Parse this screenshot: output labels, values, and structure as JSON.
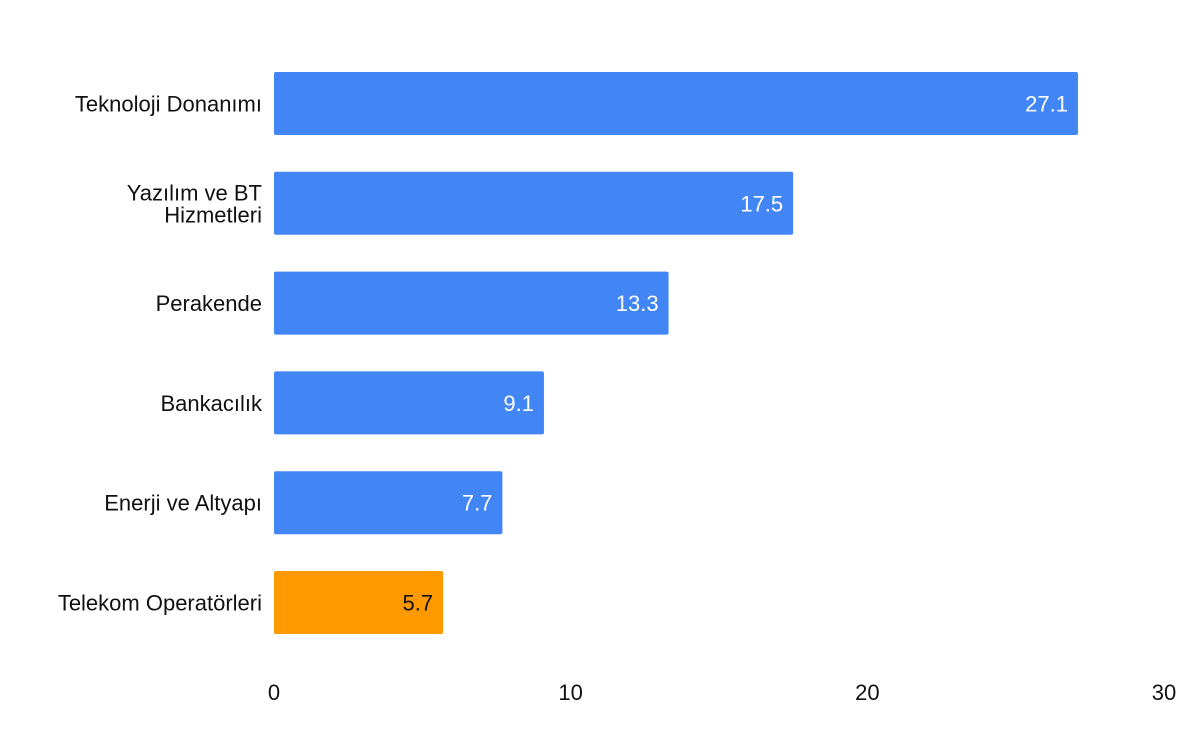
{
  "chart_data": {
    "type": "bar",
    "orientation": "horizontal",
    "categories": [
      [
        "Teknoloji Donanımı"
      ],
      [
        "Yazılım ve BT",
        "Hizmetleri"
      ],
      [
        "Perakende"
      ],
      [
        "Bankacılık"
      ],
      [
        "Enerji ve Altyapı"
      ],
      [
        "Telekom Operatörleri"
      ]
    ],
    "values": [
      27.1,
      17.5,
      13.3,
      9.1,
      7.7,
      5.7
    ],
    "value_labels": [
      "27.1",
      "17.5",
      "13.3",
      "9.1",
      "7.7",
      "5.7"
    ],
    "colors": [
      "#4285F4",
      "#4285F4",
      "#4285F4",
      "#4285F4",
      "#4285F4",
      "#FF9900"
    ],
    "label_colors": [
      "#ffffff",
      "#ffffff",
      "#ffffff",
      "#ffffff",
      "#ffffff",
      "#111111"
    ],
    "xticks": [
      0,
      10,
      20,
      30
    ],
    "xlim": [
      0,
      30
    ],
    "title": "",
    "xlabel": "",
    "ylabel": "",
    "grid": false,
    "legend": "none"
  }
}
